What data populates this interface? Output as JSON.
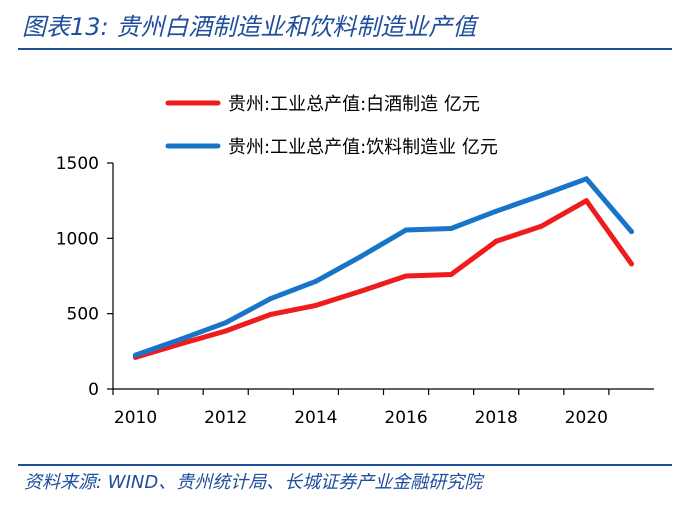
{
  "title": "图表13:  贵州白酒制造业和饮料制造业产值",
  "source": "资料来源:  WIND、贵州统计局、长城证券产业金融研究院",
  "colors": {
    "brand": "#1f4e9c",
    "series_red": "#ee1c1c",
    "series_blue": "#1874c8"
  },
  "chart_data": {
    "type": "line",
    "title": "贵州白酒制造业和饮料制造业产值",
    "xlabel": "",
    "ylabel": "",
    "x": [
      2010,
      2011,
      2012,
      2013,
      2014,
      2015,
      2016,
      2017,
      2018,
      2019,
      2020,
      2021
    ],
    "xlim": [
      2009.5,
      2021.5
    ],
    "xticks": [
      2010,
      2012,
      2014,
      2016,
      2018,
      2020
    ],
    "ylim": [
      0,
      1500
    ],
    "yticks": [
      0,
      500,
      1000,
      1500
    ],
    "grid": false,
    "legend_position": "top-center",
    "series": [
      {
        "name": "贵州:工业总产值:白酒制造 亿元",
        "color": "#ee1c1c",
        "values": [
          210,
          300,
          385,
          495,
          555,
          650,
          750,
          760,
          980,
          1080,
          1250,
          830
        ]
      },
      {
        "name": "贵州:工业总产值:饮料制造业 亿元",
        "color": "#1874c8",
        "values": [
          225,
          330,
          440,
          600,
          715,
          880,
          1055,
          1065,
          1180,
          1285,
          1395,
          1045
        ]
      }
    ]
  }
}
